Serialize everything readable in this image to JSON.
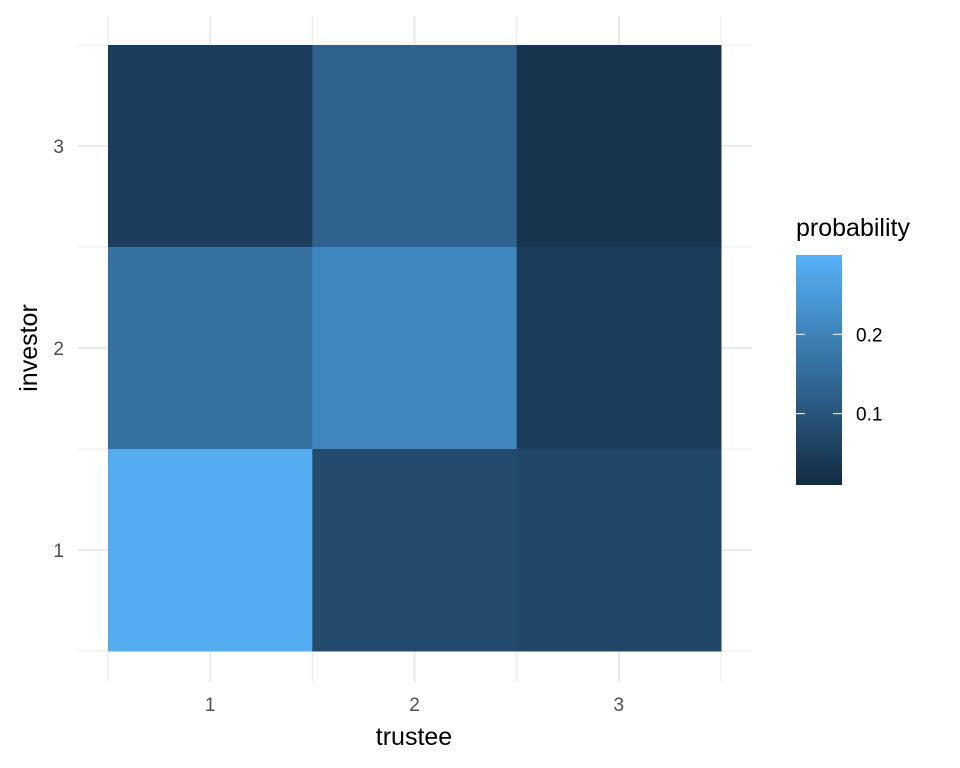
{
  "chart_data": {
    "type": "heatmap",
    "title": "",
    "xlabel": "trustee",
    "ylabel": "investor",
    "x_categories": [
      "1",
      "2",
      "3"
    ],
    "y_categories": [
      "1",
      "2",
      "3"
    ],
    "cells": [
      {
        "x": "1",
        "y": "3",
        "value": 0.05
      },
      {
        "x": "2",
        "y": "3",
        "value": 0.13
      },
      {
        "x": "3",
        "y": "3",
        "value": 0.03
      },
      {
        "x": "1",
        "y": "2",
        "value": 0.16
      },
      {
        "x": "2",
        "y": "2",
        "value": 0.21
      },
      {
        "x": "3",
        "y": "2",
        "value": 0.05
      },
      {
        "x": "1",
        "y": "1",
        "value": 0.29
      },
      {
        "x": "2",
        "y": "1",
        "value": 0.08
      },
      {
        "x": "3",
        "y": "1",
        "value": 0.07
      }
    ],
    "legend": {
      "title": "probability",
      "breaks": [
        0.1,
        0.2
      ],
      "break_labels": [
        "0.1",
        "0.2"
      ],
      "range": [
        0.01,
        0.3
      ],
      "position": "right"
    },
    "colors": {
      "low": "#132B43",
      "high": "#56B1F7",
      "grid": "#ebebeb",
      "tick_text": "#4d4d4d"
    },
    "grid": true
  }
}
